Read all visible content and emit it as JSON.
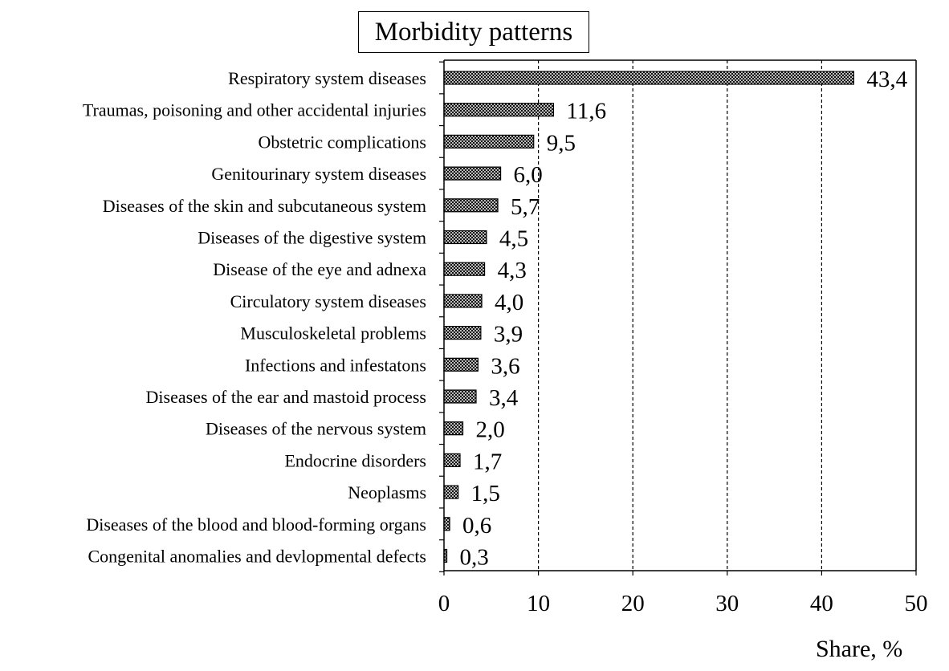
{
  "chart_data": {
    "type": "bar",
    "orientation": "horizontal",
    "title": "Morbidity patterns",
    "xlabel": "Share, %",
    "ylabel": "",
    "xlim": [
      0,
      50
    ],
    "x_ticks": [
      "0",
      "10",
      "20",
      "30",
      "40",
      "50"
    ],
    "x_tick_values": [
      0,
      10,
      20,
      30,
      40,
      50
    ],
    "grid": "vertical dashed lines at 10, 20, 30, 40",
    "bar_fill": "crosshatch",
    "categories": [
      "Respiratory system diseases",
      "Traumas, poisoning and other accidental injuries",
      "Obstetric complications",
      "Genitourinary system diseases",
      "Diseases of the skin and subcutaneous system",
      "Diseases of the digestive system",
      "Disease of the eye and adnexa",
      "Circulatory system diseases",
      "Musculoskeletal problems",
      "Infections and infestatons",
      "Diseases of the ear and mastoid process",
      "Diseases of the nervous system",
      "Endocrine disorders",
      "Neoplasms",
      "Diseases of the blood and blood-forming organs",
      "Congenital anomalies and devlopmental defects"
    ],
    "values": [
      43.4,
      11.6,
      9.5,
      6.0,
      5.7,
      4.5,
      4.3,
      4.0,
      3.9,
      3.6,
      3.4,
      2.0,
      1.7,
      1.5,
      0.6,
      0.3
    ],
    "data_labels": [
      "43,4",
      "11,6",
      "9,5",
      "6,0",
      "5,7",
      "4,5",
      "4,3",
      "4,0",
      "3,9",
      "3,6",
      "3,4",
      "2,0",
      "1,7",
      "1,5",
      "0,6",
      "0,3"
    ]
  }
}
